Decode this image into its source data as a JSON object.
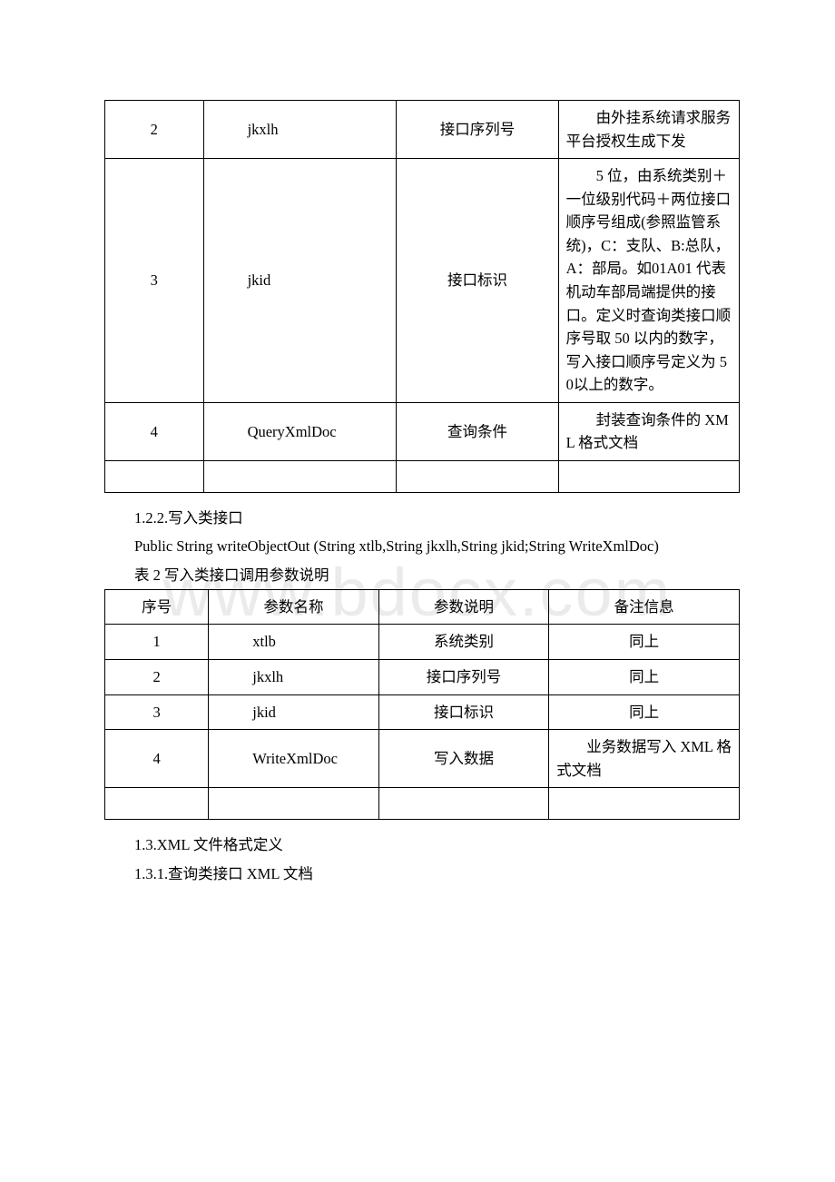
{
  "watermark": "www.bdocx.com",
  "table1": {
    "rows": [
      {
        "n": "2",
        "name": "jkxlh",
        "desc": "接口序列号",
        "remark": "由外挂系统请求服务平台授权生成下发"
      },
      {
        "n": "3",
        "name": "jkid",
        "desc": "接口标识",
        "remark": "5 位，由系统类别＋一位级别代码＋两位接口顺序号组成(参照监管系统)，C：支队、B:总队，A：部局。如01A01 代表机动车部局端提供的接口。定义时查询类接口顺序号取 50 以内的数字，写入接口顺序号定义为 50以上的数字。"
      },
      {
        "n": "4",
        "name": "QueryXmlDoc",
        "desc": "查询条件",
        "remark": "封装查询条件的 XML 格式文档"
      }
    ]
  },
  "section1": {
    "h1": "1.2.2.写入类接口",
    "code": "Public String writeObjectOut (String xtlb,String jkxlh,String jkid;String WriteXmlDoc)",
    "caption": "表 2 写入类接口调用参数说明"
  },
  "table2": {
    "header": {
      "c1": "序号",
      "c2": "参数名称",
      "c3": "参数说明",
      "c4": "备注信息"
    },
    "rows": [
      {
        "n": "1",
        "name": "xtlb",
        "desc": "系统类别",
        "remark": "同上"
      },
      {
        "n": "2",
        "name": "jkxlh",
        "desc": "接口序列号",
        "remark": "同上"
      },
      {
        "n": "3",
        "name": "jkid",
        "desc": "接口标识",
        "remark": "同上"
      },
      {
        "n": "4",
        "name": "WriteXmlDoc",
        "desc": "写入数据",
        "remark": "业务数据写入 XML 格式文档"
      }
    ]
  },
  "section2": {
    "h1": "1.3.XML 文件格式定义",
    "h2": "1.3.1.查询类接口 XML 文档"
  }
}
